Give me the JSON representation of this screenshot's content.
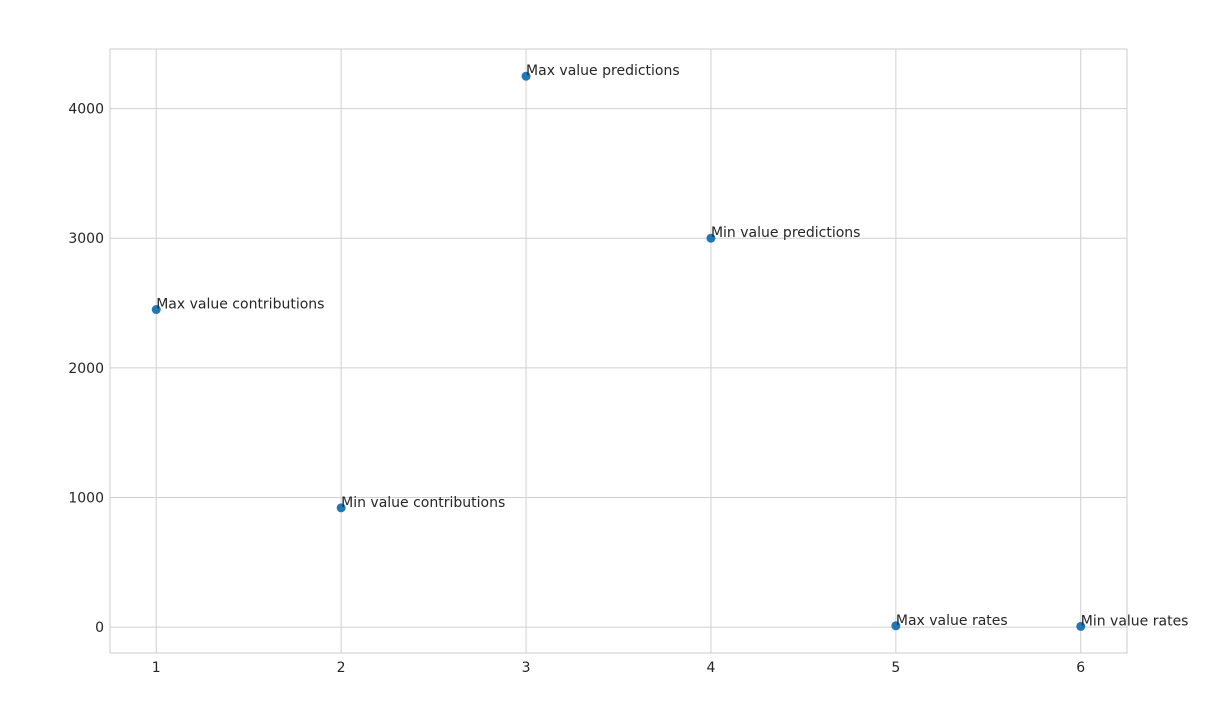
{
  "chart_data": {
    "type": "scatter",
    "title": "",
    "xlabel": "",
    "ylabel": "",
    "xlim": [
      0.75,
      6.25
    ],
    "ylim": [
      -200,
      4460
    ],
    "xticks": [
      1,
      2,
      3,
      4,
      5,
      6
    ],
    "yticks": [
      0,
      1000,
      2000,
      3000,
      4000
    ],
    "grid": true,
    "style": "seaborn-whitegrid",
    "marker_color": "#1f77b4",
    "points": [
      {
        "x": 1,
        "y": 2450,
        "label": "Max value contributions"
      },
      {
        "x": 2,
        "y": 920,
        "label": "Min value contributions"
      },
      {
        "x": 3,
        "y": 4250,
        "label": "Max value predictions"
      },
      {
        "x": 4,
        "y": 3000,
        "label": "Min value predictions"
      },
      {
        "x": 5,
        "y": 10,
        "label": "Max value rates"
      },
      {
        "x": 6,
        "y": 5,
        "label": "Min value rates"
      }
    ]
  }
}
